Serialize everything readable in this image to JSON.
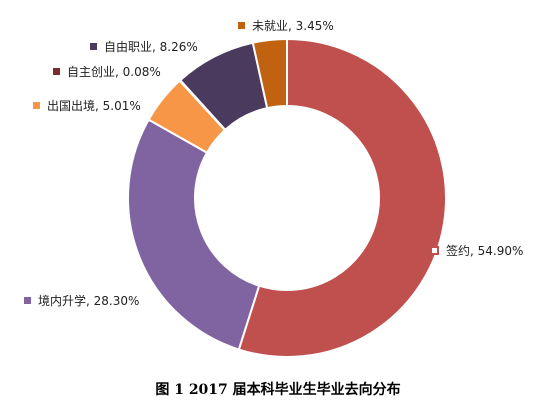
{
  "caption": "图 1 2017 届本科毕业生毕业去向分布",
  "chart_data": {
    "type": "pie",
    "variant": "donut",
    "title": "图 1 2017 届本科毕业生毕业去向分布",
    "slices": [
      {
        "name": "签约",
        "value": 54.9,
        "label": "签约, 54.90%",
        "color": "#C0504D"
      },
      {
        "name": "境内升学",
        "value": 28.3,
        "label": "境内升学, 28.30%",
        "color": "#8064A2"
      },
      {
        "name": "出国出境",
        "value": 5.01,
        "label": "出国出境, 5.01%",
        "color": "#F79646"
      },
      {
        "name": "自主创业",
        "value": 0.08,
        "label": "自主创业, 0.08%",
        "color": "#7B2C2C"
      },
      {
        "name": "自由职业",
        "value": 8.26,
        "label": "自由职业, 8.26%",
        "color": "#4A3A5E"
      },
      {
        "name": "未就业",
        "value": 3.45,
        "label": "未就业, 3.45%",
        "color": "#C0620F"
      }
    ]
  }
}
